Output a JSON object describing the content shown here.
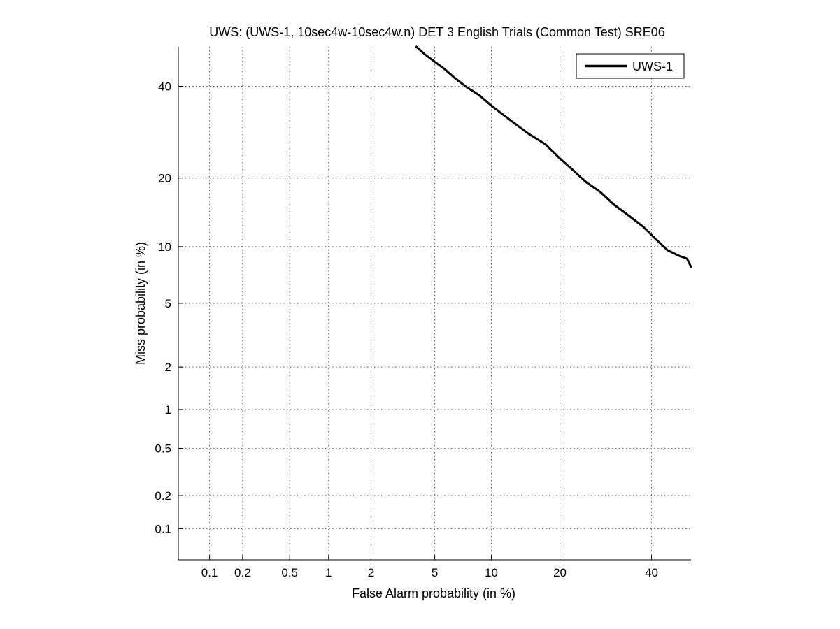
{
  "chart_data": {
    "type": "line",
    "title": "UWS: (UWS-1, 10sec4w-10sec4w.n) DET 3 English Trials (Common Test) SRE06",
    "xlabel": "False Alarm probability (in %)",
    "ylabel": "Miss probability (in %)",
    "scale": "normal-deviate (probit)",
    "xlim": [
      0.05,
      50
    ],
    "ylim": [
      0.05,
      50
    ],
    "x_ticks": [
      0.1,
      0.2,
      0.5,
      1,
      2,
      5,
      10,
      20,
      40
    ],
    "x_tick_labels": [
      "0.1",
      "0.2",
      "0.5",
      "1",
      "2",
      "5",
      "10",
      "20",
      "40"
    ],
    "y_ticks": [
      0.1,
      0.2,
      0.5,
      1,
      2,
      5,
      10,
      20,
      40
    ],
    "y_tick_labels": [
      "0.1",
      "0.2",
      "0.5",
      "1",
      "2",
      "5",
      "10",
      "20",
      "40"
    ],
    "grid": true,
    "legend_position": "top-right",
    "series": [
      {
        "name": "UWS-1",
        "color": "#000000",
        "x": [
          3.9,
          4.4,
          5.0,
          5.7,
          6.5,
          7.5,
          8.7,
          10.0,
          11.5,
          13.0,
          15.0,
          17.5,
          20.0,
          22.5,
          25.0,
          28.0,
          31.0,
          35.0,
          38.0,
          41.0,
          44.0,
          47.0,
          49.0,
          50.0
        ],
        "y": [
          50.0,
          48.0,
          46.2,
          44.3,
          42.0,
          39.8,
          37.8,
          35.3,
          33.0,
          31.0,
          28.7,
          26.6,
          23.7,
          21.4,
          19.3,
          17.6,
          15.6,
          13.7,
          12.4,
          10.9,
          9.6,
          9.0,
          8.7,
          7.9
        ]
      }
    ]
  }
}
